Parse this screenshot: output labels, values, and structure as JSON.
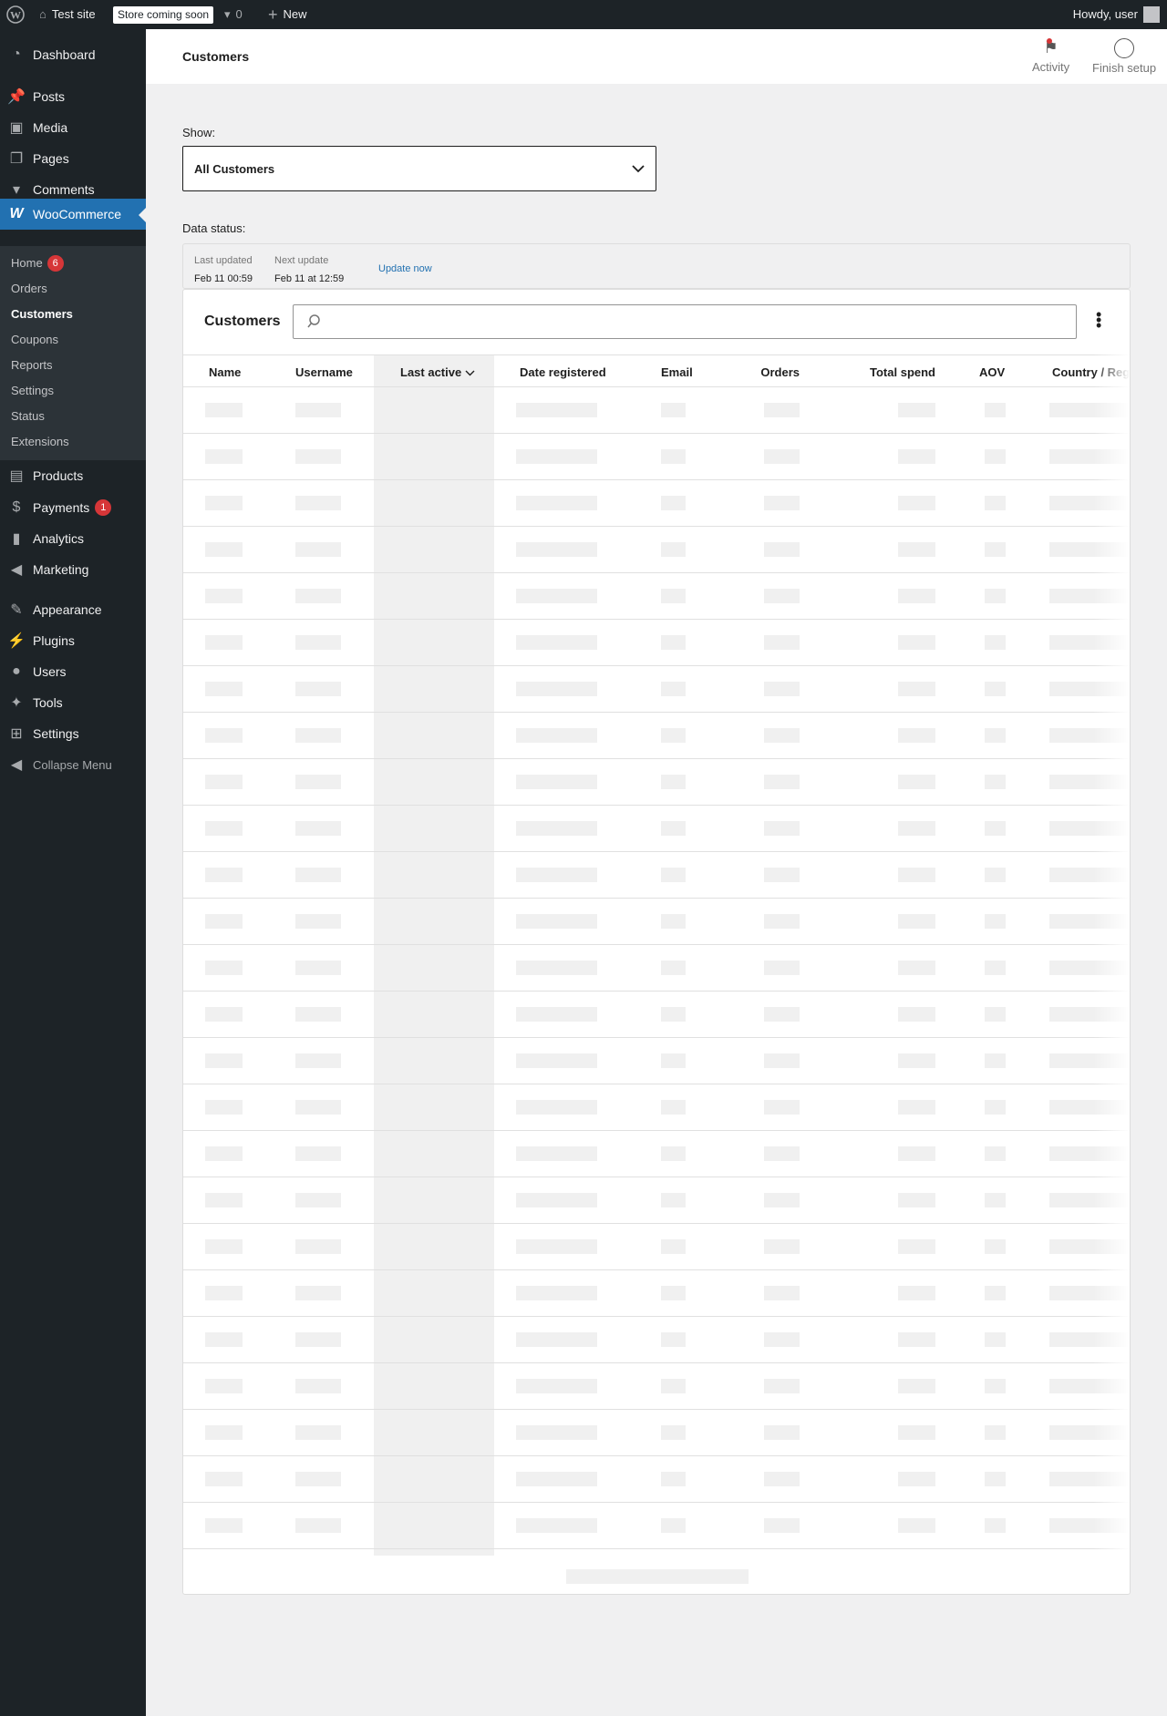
{
  "adminbar": {
    "site": "Test site",
    "store_badge": "Store coming soon",
    "comments": "0",
    "new": "New",
    "howdy": "Howdy, user"
  },
  "sidebar": {
    "items": [
      {
        "label": "Dashboard",
        "icon": "dashboard-icon"
      },
      {
        "label": "Posts",
        "icon": "pin-icon"
      },
      {
        "label": "Media",
        "icon": "media-icon"
      },
      {
        "label": "Pages",
        "icon": "pages-icon"
      },
      {
        "label": "Comments",
        "icon": "comment-icon"
      },
      {
        "label": "WooCommerce",
        "icon": "woo-icon"
      },
      {
        "label": "Products",
        "icon": "archive-icon"
      },
      {
        "label": "Payments",
        "icon": "dollar-icon",
        "badge": "1"
      },
      {
        "label": "Analytics",
        "icon": "bar-chart-icon"
      },
      {
        "label": "Marketing",
        "icon": "megaphone-icon"
      },
      {
        "label": "Appearance",
        "icon": "brush-icon"
      },
      {
        "label": "Plugins",
        "icon": "plugin-icon"
      },
      {
        "label": "Users",
        "icon": "user-icon"
      },
      {
        "label": "Tools",
        "icon": "wrench-icon"
      },
      {
        "label": "Settings",
        "icon": "settings-icon"
      },
      {
        "label": "Collapse Menu",
        "icon": "collapse-icon"
      }
    ],
    "submenu": [
      {
        "label": "Home",
        "badge": "6"
      },
      {
        "label": "Orders"
      },
      {
        "label": "Customers"
      },
      {
        "label": "Coupons"
      },
      {
        "label": "Reports"
      },
      {
        "label": "Settings"
      },
      {
        "label": "Status"
      },
      {
        "label": "Extensions"
      }
    ]
  },
  "header": {
    "title": "Customers",
    "activity": "Activity",
    "finish_setup": "Finish setup"
  },
  "filter": {
    "label": "Show:",
    "value": "All Customers"
  },
  "data_status": {
    "label": "Data status:",
    "last_updated_label": "Last updated",
    "last_updated": "Feb 11 00:59",
    "next_update_label": "Next update",
    "next_update": "Feb 11 at 12:59",
    "update_now": "Update now"
  },
  "table": {
    "title": "Customers",
    "columns": [
      "Name",
      "Username",
      "Last active",
      "Date registered",
      "Email",
      "Orders",
      "Total spend",
      "AOV",
      "Country / Region"
    ],
    "sorted_column": "Last active"
  },
  "colors": {
    "accent": "#2271b1",
    "adminbar": "#1d2327",
    "badge": "#d63638"
  }
}
